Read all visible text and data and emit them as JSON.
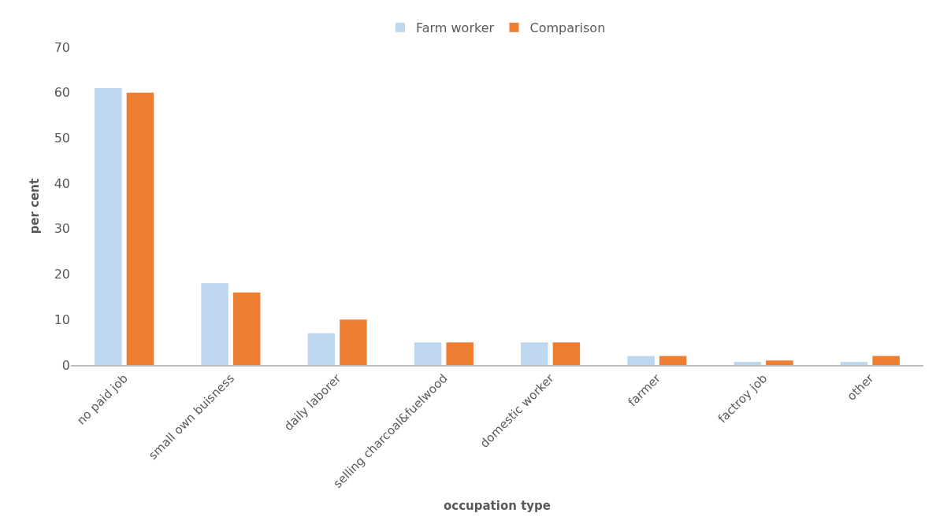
{
  "chart_data": {
    "type": "bar",
    "xlabel": "occupation type",
    "ylabel": "per cent",
    "categories": [
      "no paid job",
      "small own buisness",
      "daily laborer",
      "selling charcoal&fuelwood",
      "domestic worker",
      "farmer",
      "factroy job",
      "other"
    ],
    "series": [
      {
        "name": "Farm worker",
        "color": "#bdd7ee",
        "values": [
          61,
          18,
          7,
          5,
          5,
          2,
          0.7,
          0.7
        ]
      },
      {
        "name": "Comparison",
        "color": "#ed7d31",
        "values": [
          60,
          16,
          10,
          5,
          5,
          2,
          1,
          2
        ]
      }
    ],
    "ylim": [
      0,
      70
    ],
    "yticks": [
      0,
      10,
      20,
      30,
      40,
      50,
      60,
      70
    ],
    "legend": "top"
  }
}
